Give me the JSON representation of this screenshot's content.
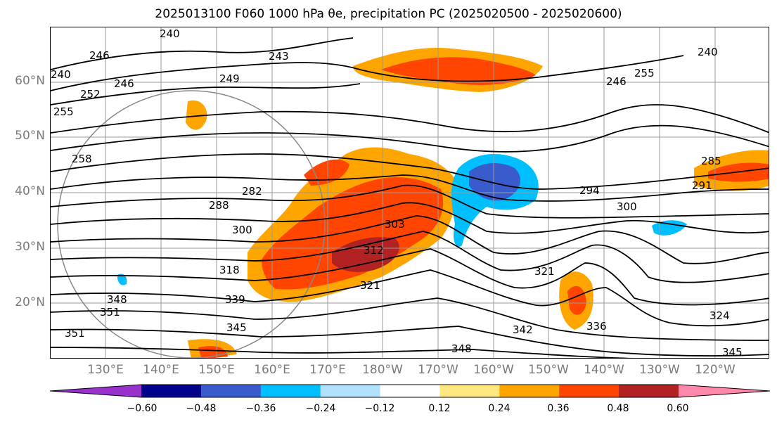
{
  "title": "2025013100 F060 1000 hPa θe, precipitation PC (2025020500 - 2025020600)",
  "map": {
    "region": "North Pacific",
    "lat_ticks": [
      "60°N",
      "50°N",
      "40°N",
      "30°N",
      "20°N"
    ],
    "lon_ticks": [
      "130°E",
      "140°E",
      "150°E",
      "160°E",
      "170°E",
      "180°W",
      "170°W",
      "160°W",
      "150°W",
      "140°W",
      "130°W",
      "120°W"
    ],
    "contour_labels": [
      "240",
      "246",
      "240",
      "252",
      "246",
      "255",
      "258",
      "243",
      "249",
      "246",
      "240",
      "255",
      "282",
      "288",
      "300",
      "303",
      "312",
      "318",
      "321",
      "294",
      "300",
      "285",
      "291",
      "339",
      "348",
      "351",
      "345",
      "342",
      "348",
      "336",
      "324",
      "345",
      "321",
      "351"
    ]
  },
  "colorbar": {
    "ticks": [
      "−0.60",
      "−0.48",
      "−0.36",
      "−0.24",
      "−0.12",
      "0.12",
      "0.24",
      "0.36",
      "0.48",
      "0.60"
    ],
    "colors": [
      "#9932cc",
      "#00008b",
      "#3a5bcc",
      "#00bfff",
      "#b0e2ff",
      "#ffffff",
      "#ffe880",
      "#ffa500",
      "#ff4500",
      "#b22222",
      "#ff88aa"
    ]
  }
}
